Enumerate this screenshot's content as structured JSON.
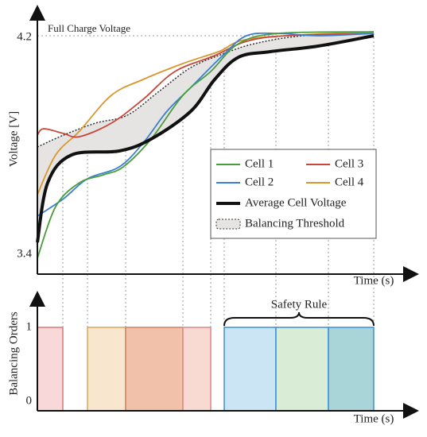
{
  "top_plot": {
    "y_axis_label": "Voltage [V]",
    "x_axis_label": "Time (s)",
    "y_ticks": [
      "4.2",
      "3.4"
    ],
    "annotation": "Full Charge Voltage",
    "legend": [
      "Cell 1",
      "Cell 3",
      "Cell 2",
      "Cell 4",
      "Average Cell Voltage",
      "Balancing Threshold"
    ]
  },
  "bottom_plot": {
    "y_axis_label": "Balancing Orders",
    "x_axis_label": "Time (s)",
    "y_ticks": [
      "1",
      "0"
    ],
    "annotation": "Safety Rule"
  }
}
